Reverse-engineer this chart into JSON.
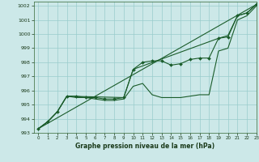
{
  "background_color": "#cce8e8",
  "grid_color": "#99cccc",
  "line_color": "#1a5c2a",
  "marker_color": "#1a5c2a",
  "title": "Graphe pression niveau de la mer (hPa)",
  "xlim": [
    -0.5,
    23
  ],
  "ylim": [
    993,
    1002.3
  ],
  "yticks": [
    993,
    994,
    995,
    996,
    997,
    998,
    999,
    1000,
    1001,
    1002
  ],
  "xticks": [
    0,
    1,
    2,
    3,
    4,
    5,
    6,
    7,
    8,
    9,
    10,
    11,
    12,
    13,
    14,
    15,
    16,
    17,
    18,
    19,
    20,
    21,
    22,
    23
  ],
  "series_straight": {
    "x": [
      0,
      23
    ],
    "y": [
      993.3,
      1002.1
    ],
    "linewidth": 0.8
  },
  "series_upper": {
    "x": [
      0,
      1,
      2,
      3,
      9,
      10,
      19,
      20,
      21,
      22,
      23
    ],
    "y": [
      993.3,
      993.8,
      994.5,
      995.6,
      995.5,
      997.5,
      999.7,
      999.9,
      1001.3,
      1001.5,
      1002.1
    ],
    "linewidth": 0.8
  },
  "series_marked": {
    "x": [
      0,
      1,
      2,
      3,
      4,
      5,
      6,
      7,
      8,
      9,
      10,
      11,
      12,
      13,
      14,
      15,
      16,
      17,
      18,
      19,
      20,
      21,
      22,
      23
    ],
    "y": [
      993.3,
      993.8,
      994.5,
      995.6,
      995.6,
      995.5,
      995.5,
      995.4,
      995.4,
      995.5,
      997.5,
      998.0,
      998.1,
      998.1,
      997.8,
      997.9,
      998.2,
      998.3,
      998.3,
      999.7,
      999.8,
      1001.3,
      1001.5,
      1002.1
    ],
    "marker": "D",
    "markersize": 2.0,
    "linewidth": 0.8
  },
  "series_lower": {
    "x": [
      0,
      1,
      2,
      3,
      4,
      5,
      6,
      7,
      8,
      9,
      10,
      11,
      12,
      13,
      14,
      15,
      16,
      17,
      18,
      19,
      20,
      21,
      22,
      23
    ],
    "y": [
      993.3,
      993.8,
      994.5,
      995.6,
      995.5,
      995.5,
      995.4,
      995.3,
      995.3,
      995.4,
      996.3,
      996.5,
      995.7,
      995.5,
      995.5,
      995.5,
      995.6,
      995.7,
      995.7,
      998.8,
      999.0,
      1001.0,
      1001.3,
      1002.0
    ],
    "linewidth": 0.8
  }
}
